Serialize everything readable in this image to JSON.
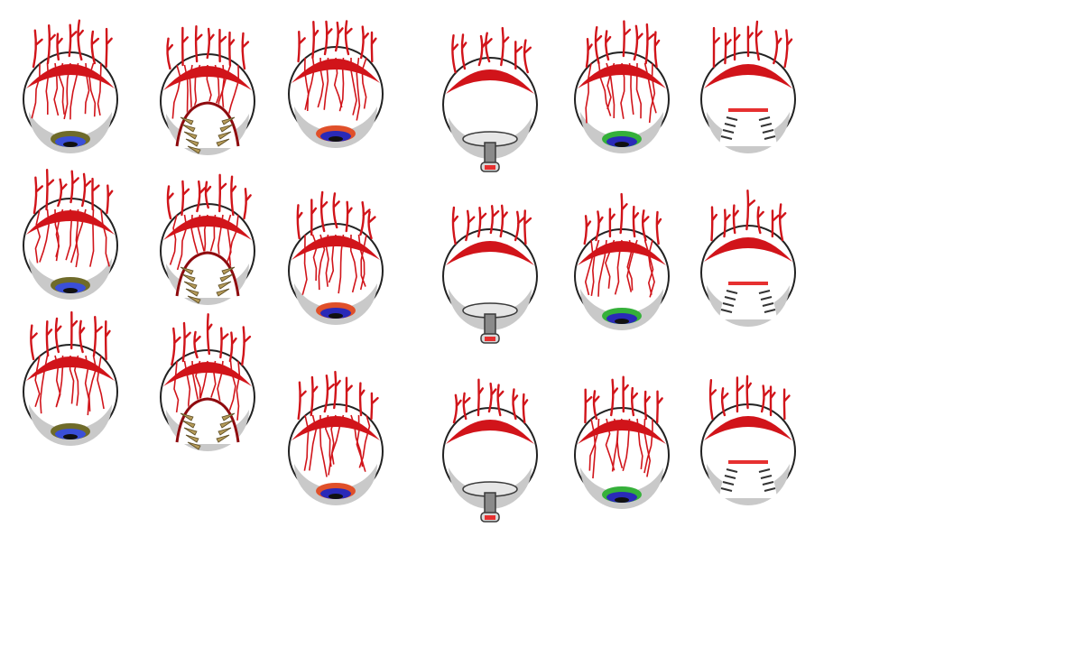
{
  "sheet": {
    "background": "#ffffff",
    "columns": [
      {
        "kind": "eye",
        "iris": "#3a4fd8",
        "iris_ring": "#6f6b2a",
        "frames": 3
      },
      {
        "kind": "mouth",
        "teeth": "#b59b5a",
        "frames": 3
      },
      {
        "kind": "eye",
        "iris": "#2a2ab8",
        "iris_ring": "#e0502a",
        "frames": 3
      },
      {
        "kind": "mech-eye",
        "frames": 3
      },
      {
        "kind": "eye",
        "iris": "#2a2ab8",
        "iris_ring": "#35b03a",
        "frames": 3
      },
      {
        "kind": "mech-mouth",
        "frames": 3
      }
    ],
    "colors": {
      "vein": "#d1141a",
      "vein_dark": "#8e0a0e",
      "sclera": "#ffffff",
      "sclera_shade": "#c9c9c9",
      "outline": "#222222",
      "metal": "#8a8a8a",
      "metal_dark": "#3a3a3a"
    }
  }
}
